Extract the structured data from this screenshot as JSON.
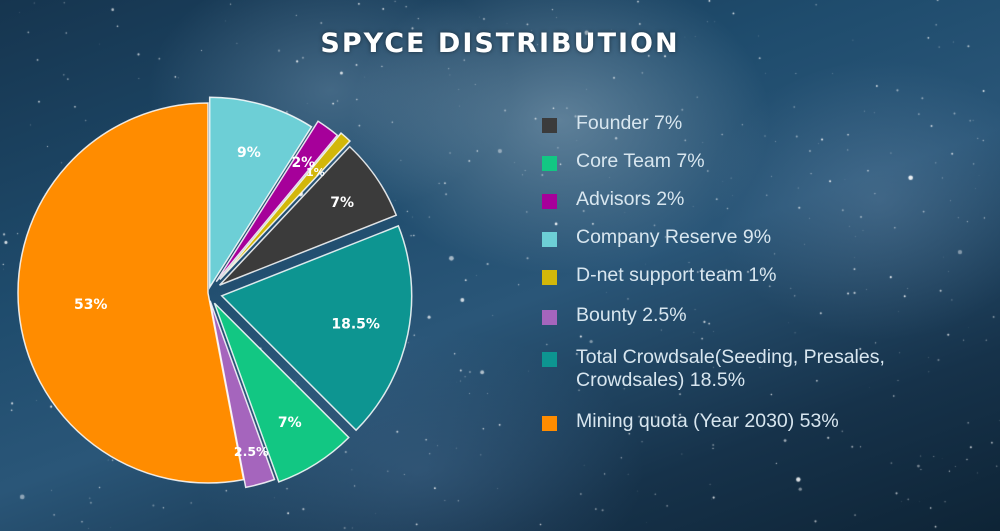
{
  "title": "SPYCE DISTRIBUTION",
  "chart_data": {
    "type": "pie",
    "title": "SPYCE DISTRIBUTION",
    "slices": [
      {
        "name": "Company Reserve",
        "value": 9,
        "label": "9%",
        "color": "#6dcfd6",
        "legend": "Company Reserve 9%"
      },
      {
        "name": "Advisors",
        "value": 2,
        "label": "2%",
        "color": "#a6009a",
        "legend": "Advisors 2%"
      },
      {
        "name": "D-net support team",
        "value": 1,
        "label": "1%",
        "color": "#d2b70a",
        "legend": "D-net support team 1%"
      },
      {
        "name": "Founder",
        "value": 7,
        "label": "7%",
        "color": "#3b3b3b",
        "legend": "Founder 7%"
      },
      {
        "name": "Total Crowdsale",
        "value": 18.5,
        "label": "18.5%",
        "color": "#0d9591",
        "legend": "Total Crowdsale(Seeding, Presales, Crowdsales) 18.5%"
      },
      {
        "name": "Core Team",
        "value": 7,
        "label": "7%",
        "color": "#12c783",
        "legend": "Core Team 7%"
      },
      {
        "name": "Bounty",
        "value": 2.5,
        "label": "2.5%",
        "color": "#a565bd",
        "legend": "Bounty 2.5%"
      },
      {
        "name": "Mining quota",
        "value": 53,
        "label": "53%",
        "color": "#ff8c00",
        "legend": "Mining quota (Year 2030) 53%"
      }
    ],
    "legend_order": [
      "Founder",
      "Core Team",
      "Advisors",
      "Company Reserve",
      "D-net support team",
      "Bounty",
      "Total Crowdsale",
      "Mining quota"
    ],
    "legend_position": "right"
  }
}
